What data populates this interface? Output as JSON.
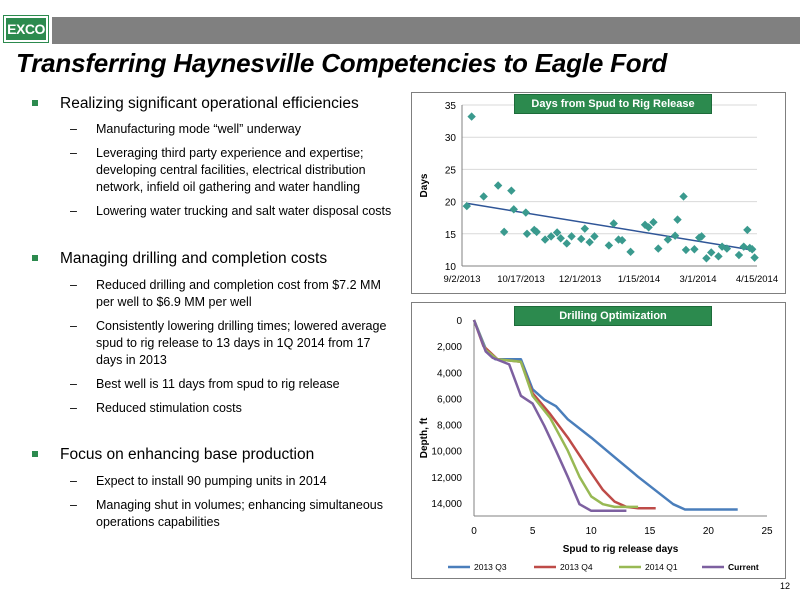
{
  "header": {
    "logo_text": "EXCO",
    "title": "Transferring Haynesville Competencies to Eagle Ford",
    "accent_color": "#2c8a4e"
  },
  "bullets": [
    {
      "text": "Realizing significant operational efficiencies",
      "sub": [
        "Manufacturing mode “well” underway",
        "Leveraging third party experience and expertise; developing central facilities, electrical distribution network, infield oil gathering and water handling",
        "Lowering water trucking and salt water disposal costs"
      ]
    },
    {
      "text": "Managing drilling and completion costs",
      "sub": [
        "Reduced drilling and completion cost from $7.2 MM per well to $6.9 MM per well",
        "Consistently lowering drilling times; lowered average spud to rig release to 13 days in 1Q 2014 from 17 days in 2013",
        "Best well is 11 days from spud to rig release",
        "Reduced stimulation costs"
      ]
    },
    {
      "text": "Focus on enhancing base production",
      "sub": [
        "Expect to install 90 pumping units in 2014",
        "Managing shut in volumes; enhancing simultaneous operations capabilities"
      ]
    }
  ],
  "page_number": "12",
  "chart_data": [
    {
      "type": "scatter",
      "title": "Days from Spud to Rig Release",
      "ylabel": "Days",
      "xlabel": "",
      "x_tick_labels": [
        "9/2/2013",
        "10/17/2013",
        "12/1/2013",
        "1/15/2014",
        "3/1/2014",
        "4/15/2014"
      ],
      "y_tick_labels": [
        "10",
        "15",
        "20",
        "25",
        "30",
        "35"
      ],
      "xlim": [
        "2013-09-02",
        "2014-05-05"
      ],
      "ylim": [
        10,
        35
      ],
      "marker_color": "#3a9a8e",
      "trendline": {
        "color": "#2f5597",
        "start": 19.7,
        "end": 12.4
      },
      "points": [
        {
          "x": "2013-09-06",
          "y": 19.3
        },
        {
          "x": "2013-09-10",
          "y": 33.2
        },
        {
          "x": "2013-09-20",
          "y": 20.8
        },
        {
          "x": "2013-10-02",
          "y": 22.5
        },
        {
          "x": "2013-10-07",
          "y": 15.3
        },
        {
          "x": "2013-10-13",
          "y": 21.7
        },
        {
          "x": "2013-10-15",
          "y": 18.8
        },
        {
          "x": "2013-10-25",
          "y": 18.3
        },
        {
          "x": "2013-10-26",
          "y": 15.0
        },
        {
          "x": "2013-11-01",
          "y": 15.6
        },
        {
          "x": "2013-11-03",
          "y": 15.3
        },
        {
          "x": "2013-11-10",
          "y": 14.1
        },
        {
          "x": "2013-11-15",
          "y": 14.6
        },
        {
          "x": "2013-11-20",
          "y": 15.2
        },
        {
          "x": "2013-11-23",
          "y": 14.3
        },
        {
          "x": "2013-11-28",
          "y": 13.5
        },
        {
          "x": "2013-12-02",
          "y": 14.6
        },
        {
          "x": "2013-12-10",
          "y": 14.2
        },
        {
          "x": "2013-12-13",
          "y": 15.8
        },
        {
          "x": "2013-12-17",
          "y": 13.7
        },
        {
          "x": "2013-12-21",
          "y": 14.6
        },
        {
          "x": "2014-01-02",
          "y": 13.2
        },
        {
          "x": "2014-01-06",
          "y": 16.6
        },
        {
          "x": "2014-01-10",
          "y": 14.1
        },
        {
          "x": "2014-01-13",
          "y": 14.0
        },
        {
          "x": "2014-01-20",
          "y": 12.2
        },
        {
          "x": "2014-02-01",
          "y": 16.4
        },
        {
          "x": "2014-02-04",
          "y": 16.0
        },
        {
          "x": "2014-02-08",
          "y": 16.8
        },
        {
          "x": "2014-02-12",
          "y": 12.7
        },
        {
          "x": "2014-02-20",
          "y": 14.1
        },
        {
          "x": "2014-02-26",
          "y": 14.7
        },
        {
          "x": "2014-02-28",
          "y": 17.2
        },
        {
          "x": "2014-03-05",
          "y": 20.8
        },
        {
          "x": "2014-03-07",
          "y": 12.5
        },
        {
          "x": "2014-03-14",
          "y": 12.6
        },
        {
          "x": "2014-03-18",
          "y": 14.4
        },
        {
          "x": "2014-03-20",
          "y": 14.6
        },
        {
          "x": "2014-03-24",
          "y": 11.2
        },
        {
          "x": "2014-03-28",
          "y": 12.1
        },
        {
          "x": "2014-04-03",
          "y": 11.5
        },
        {
          "x": "2014-04-06",
          "y": 13.0
        },
        {
          "x": "2014-04-10",
          "y": 12.7
        },
        {
          "x": "2014-04-20",
          "y": 11.7
        },
        {
          "x": "2014-04-24",
          "y": 13.0
        },
        {
          "x": "2014-04-27",
          "y": 15.6
        },
        {
          "x": "2014-04-29",
          "y": 12.8
        },
        {
          "x": "2014-05-01",
          "y": 12.6
        },
        {
          "x": "2014-05-03",
          "y": 11.3
        }
      ]
    },
    {
      "type": "line",
      "title": "Drilling Optimization",
      "xlabel": "Spud to rig release days",
      "ylabel": "Depth, ft",
      "xlim": [
        0,
        25
      ],
      "ylim": [
        0,
        15000
      ],
      "y_inverted": true,
      "x_tick_labels": [
        "0",
        "5",
        "10",
        "15",
        "20",
        "25"
      ],
      "y_tick_labels": [
        "0",
        "2,000",
        "4,000",
        "6,000",
        "8,000",
        "10,000",
        "12,000",
        "14,000"
      ],
      "series": [
        {
          "name": "2013 Q3",
          "color": "#4a7ebb",
          "points": [
            [
              0,
              0
            ],
            [
              1,
              2200
            ],
            [
              1.8,
              3000
            ],
            [
              3.5,
              3000
            ],
            [
              4,
              3000
            ],
            [
              5,
              5300
            ],
            [
              6,
              6100
            ],
            [
              7,
              6600
            ],
            [
              8,
              7600
            ],
            [
              10,
              9000
            ],
            [
              12,
              10500
            ],
            [
              14,
              12000
            ],
            [
              17,
              14100
            ],
            [
              18,
              14500
            ],
            [
              20,
              14500
            ],
            [
              22.5,
              14500
            ]
          ]
        },
        {
          "name": "2013 Q4",
          "color": "#be4b48",
          "points": [
            [
              0,
              0
            ],
            [
              0.8,
              2000
            ],
            [
              2,
              3000
            ],
            [
              4,
              3200
            ],
            [
              5,
              5600
            ],
            [
              6.5,
              7200
            ],
            [
              8,
              9000
            ],
            [
              10,
              11700
            ],
            [
              11,
              13000
            ],
            [
              12,
              13900
            ],
            [
              13,
              14300
            ],
            [
              14,
              14400
            ],
            [
              15,
              14400
            ],
            [
              15.5,
              14400
            ]
          ]
        },
        {
          "name": "2014 Q1",
          "color": "#98b954",
          "points": [
            [
              0,
              0
            ],
            [
              1,
              2300
            ],
            [
              2,
              3000
            ],
            [
              4,
              3200
            ],
            [
              5,
              5800
            ],
            [
              6.5,
              7500
            ],
            [
              8,
              10000
            ],
            [
              9,
              12000
            ],
            [
              10,
              13500
            ],
            [
              11,
              14100
            ],
            [
              12,
              14300
            ],
            [
              13.5,
              14300
            ],
            [
              14,
              14300
            ]
          ]
        },
        {
          "name": "Current",
          "color": "#7d60a0",
          "points": [
            [
              0,
              0
            ],
            [
              1,
              2400
            ],
            [
              1.6,
              2900
            ],
            [
              3,
              3400
            ],
            [
              4,
              5800
            ],
            [
              5,
              6400
            ],
            [
              6,
              8100
            ],
            [
              7,
              10000
            ],
            [
              8,
              12000
            ],
            [
              9,
              14100
            ],
            [
              10,
              14600
            ],
            [
              11,
              14600
            ],
            [
              13,
              14600
            ]
          ]
        }
      ]
    }
  ]
}
